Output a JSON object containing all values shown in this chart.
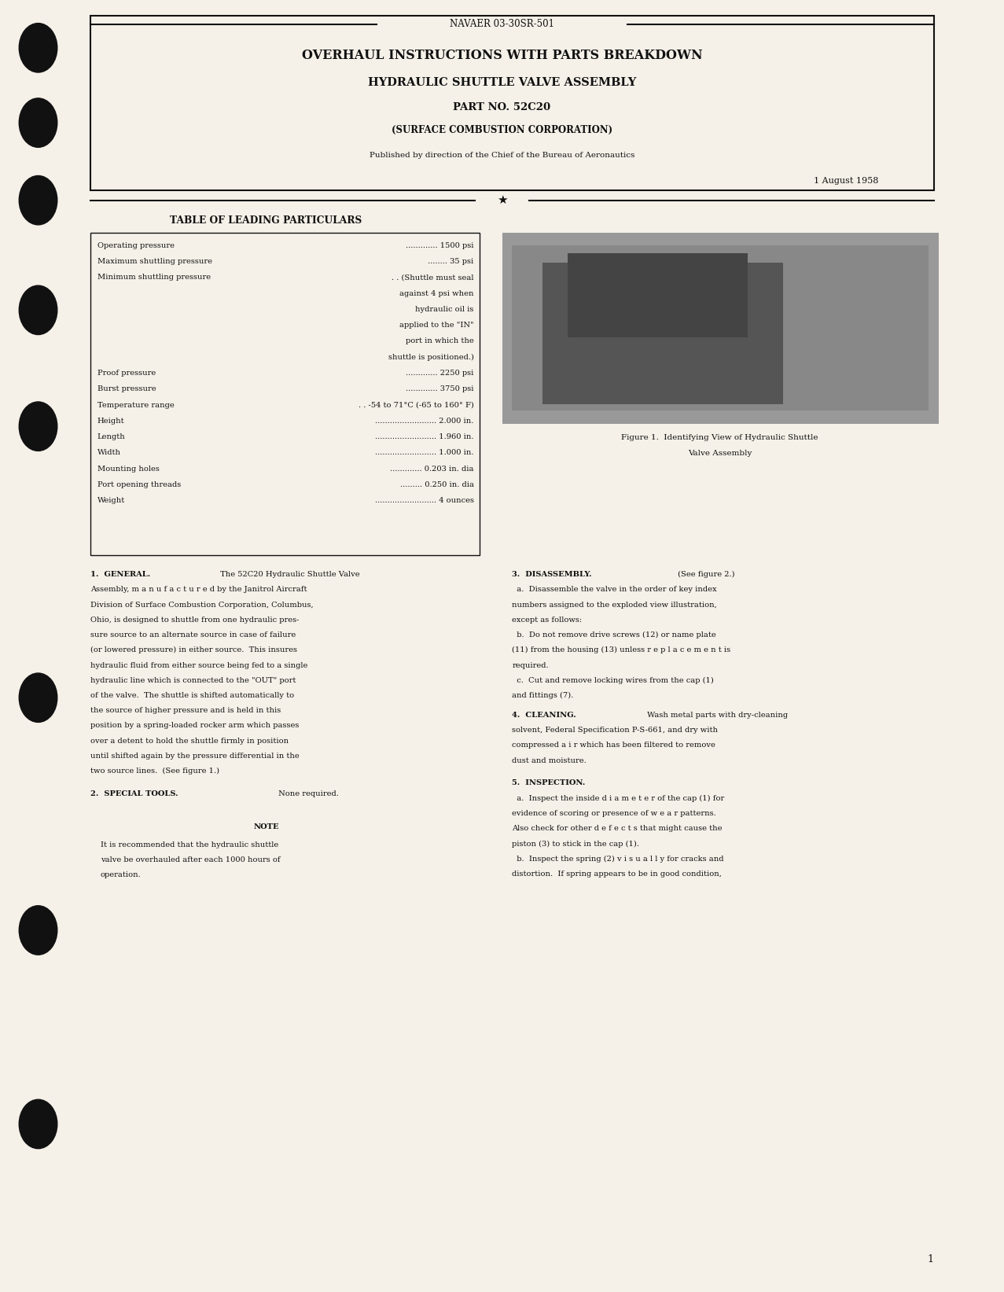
{
  "bg_color": "#f5f0e8",
  "page_width": 12.77,
  "page_height": 16.43,
  "header_doc_num": "NAVAER 03-30SR-501",
  "title_line1": "OVERHAUL INSTRUCTIONS WITH PARTS BREAKDOWN",
  "title_line2": "HYDRAULIC SHUTTLE VALVE ASSEMBLY",
  "title_line3": "PART NO. 52C20",
  "title_line4": "(SURFACE COMBUSTION CORPORATION)",
  "published_line": "Published by direction of the Chief of the Bureau of Aeronautics",
  "date_line": "1 August 1958",
  "table_title": "TABLE OF LEADING PARTICULARS",
  "fig_caption_line1": "Figure 1.  Identifying View of Hydraulic Shuttle",
  "fig_caption_line2": "Valve Assembly",
  "section1_title": "1.  GENERAL.",
  "section2_title": "2.  SPECIAL TOOLS.",
  "section2_text": " None required.",
  "note_title": "NOTE",
  "section3_title": "3.  DISASSEMBLY.",
  "section3_text": " (See figure 2.)",
  "section4_title": "4.  CLEANING.",
  "section5_title": "5.  INSPECTION.",
  "page_number": "1",
  "dots_color": "#111111",
  "text_color": "#111111",
  "border_color": "#111111",
  "photo_color": "#999999"
}
